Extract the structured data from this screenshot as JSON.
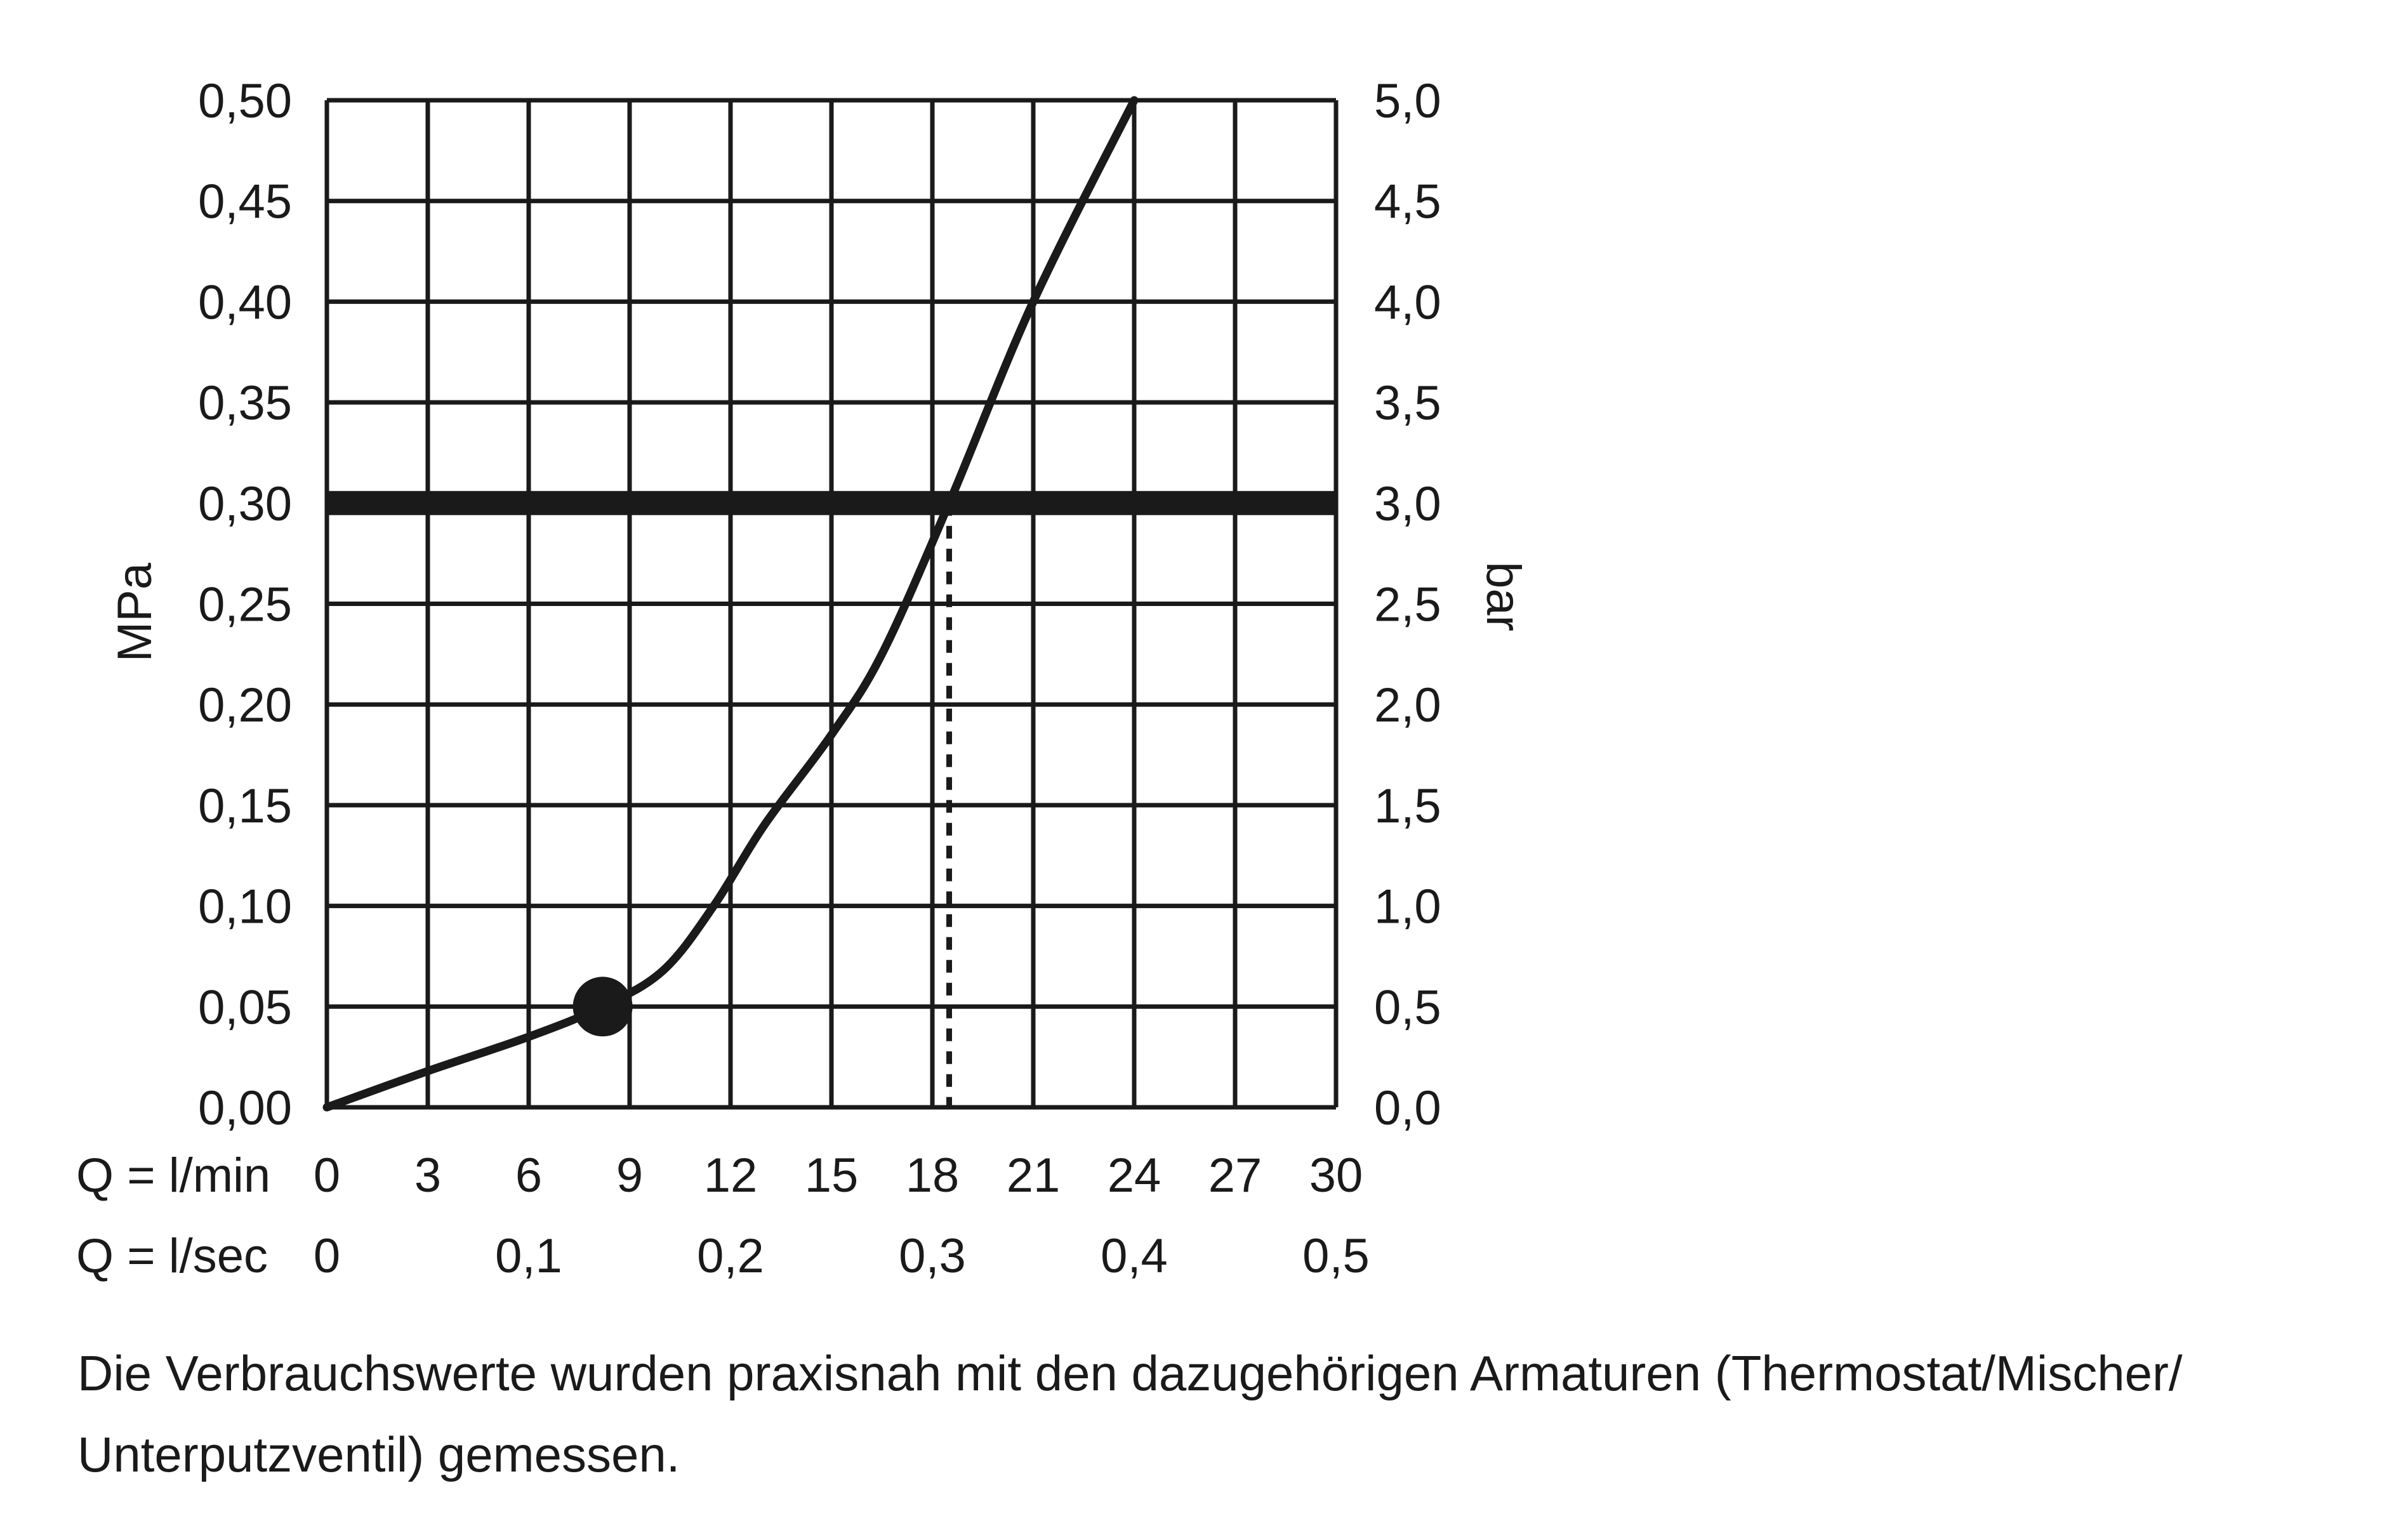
{
  "chart_data": {
    "type": "line",
    "x_axis": {
      "label": "Q = l/min",
      "min": 0,
      "max": 30,
      "ticks": [
        0,
        3,
        6,
        9,
        12,
        15,
        18,
        21,
        24,
        27,
        30
      ],
      "tick_labels": [
        "0",
        "3",
        "6",
        "9",
        "12",
        "15",
        "18",
        "21",
        "24",
        "27",
        "30"
      ]
    },
    "x_axis_secondary": {
      "label": "Q = l/sec",
      "tick_values": [
        0,
        0.1,
        0.2,
        0.3,
        0.4,
        0.5
      ],
      "tick_labels": [
        "0",
        "0,1",
        "0,2",
        "0,3",
        "0,4",
        "0,5"
      ]
    },
    "y_axis_left": {
      "label": "MPa",
      "min": 0,
      "max": 0.5,
      "ticks": [
        0,
        0.05,
        0.1,
        0.15,
        0.2,
        0.25,
        0.3,
        0.35,
        0.4,
        0.45,
        0.5
      ],
      "tick_labels": [
        "0,00",
        "0,05",
        "0,10",
        "0,15",
        "0,20",
        "0,25",
        "0,30",
        "0,35",
        "0,40",
        "0,45",
        "0,50"
      ]
    },
    "y_axis_right": {
      "label": "bar",
      "tick_labels": [
        "0,0",
        "0,5",
        "1,0",
        "1,5",
        "2,0",
        "2,5",
        "3,0",
        "3,5",
        "4,0",
        "4,5",
        "5,0"
      ]
    },
    "grid": true,
    "series": [
      {
        "x": [
          0,
          3,
          6,
          8.2,
          10,
          11.5,
          13,
          15,
          16.5,
          18.5,
          21,
          24
        ],
        "y": [
          0,
          0.018,
          0.035,
          0.05,
          0.068,
          0.1,
          0.14,
          0.185,
          0.225,
          0.3,
          0.4,
          0.5
        ]
      }
    ],
    "marker_point": {
      "x": 8.2,
      "y": 0.05
    },
    "reference_line": {
      "y": 0.3
    },
    "dashed_drop_line": {
      "x": 18.5,
      "y_top": 0.3
    }
  },
  "caption": {
    "line1": "Die Verbrauchswerte wurden praxisnah mit den dazugehörigen Armaturen (Thermostat/Mischer/",
    "line2": "Unterputzventil) gemessen."
  }
}
